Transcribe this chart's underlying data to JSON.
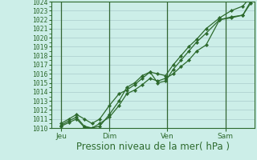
{
  "xlabel": "Pression niveau de la mer( hPa )",
  "bg_color": "#cceee8",
  "grid_color": "#aacccc",
  "vline_color": "#336633",
  "line_color": "#2d6a2d",
  "ylim": [
    1010,
    1024
  ],
  "xlim": [
    0,
    10.5
  ],
  "yticks": [
    1010,
    1011,
    1012,
    1013,
    1014,
    1015,
    1016,
    1017,
    1018,
    1019,
    1020,
    1021,
    1022,
    1023,
    1024
  ],
  "xtick_labels": [
    "Jeu",
    "Dim",
    "Ven",
    "Sam"
  ],
  "xtick_positions": [
    0.5,
    3.0,
    6.0,
    9.0
  ],
  "vline_positions": [
    0.5,
    3.0,
    6.0,
    9.0
  ],
  "line1_x": [
    0.5,
    0.9,
    1.3,
    1.7,
    2.1,
    2.5,
    3.0,
    3.5,
    3.9,
    4.3,
    4.7,
    5.1,
    5.5,
    5.9,
    6.3,
    6.7,
    7.1,
    7.5,
    8.0,
    8.7,
    9.3,
    9.9,
    10.3
  ],
  "line1_y": [
    1010.3,
    1010.8,
    1011.2,
    1010.2,
    1010.0,
    1010.5,
    1011.2,
    1012.5,
    1013.8,
    1014.2,
    1014.8,
    1015.5,
    1015.2,
    1015.5,
    1016.0,
    1016.8,
    1017.5,
    1018.5,
    1019.2,
    1022.0,
    1022.3,
    1022.5,
    1023.8
  ],
  "line2_x": [
    0.5,
    0.9,
    1.3,
    1.7,
    2.1,
    2.5,
    3.0,
    3.5,
    3.9,
    4.3,
    4.7,
    5.1,
    5.5,
    5.9,
    6.3,
    6.7,
    7.1,
    7.5,
    8.0,
    8.7,
    9.3,
    9.9,
    10.3
  ],
  "line2_y": [
    1010.2,
    1010.6,
    1011.0,
    1010.1,
    1010.0,
    1010.2,
    1011.5,
    1013.0,
    1014.5,
    1015.0,
    1015.8,
    1016.2,
    1015.0,
    1015.2,
    1016.5,
    1017.5,
    1018.5,
    1019.5,
    1020.5,
    1022.0,
    1022.2,
    1022.5,
    1024.0
  ],
  "line3_x": [
    0.5,
    0.9,
    1.3,
    1.7,
    2.1,
    2.5,
    3.0,
    3.5,
    3.9,
    4.3,
    4.7,
    5.1,
    5.5,
    5.9,
    6.3,
    6.7,
    7.1,
    7.5,
    8.0,
    8.7,
    9.3,
    9.9,
    10.3
  ],
  "line3_y": [
    1010.5,
    1011.0,
    1011.5,
    1011.0,
    1010.5,
    1011.0,
    1012.5,
    1013.8,
    1014.2,
    1014.8,
    1015.5,
    1016.2,
    1016.0,
    1015.8,
    1017.0,
    1018.0,
    1019.0,
    1019.8,
    1021.0,
    1022.2,
    1023.0,
    1023.5,
    1024.5
  ],
  "marker": "D",
  "markersize": 2.2,
  "linewidth": 0.9,
  "ytick_fontsize": 5.8,
  "xtick_fontsize": 6.5,
  "xlabel_fontsize": 8.5
}
